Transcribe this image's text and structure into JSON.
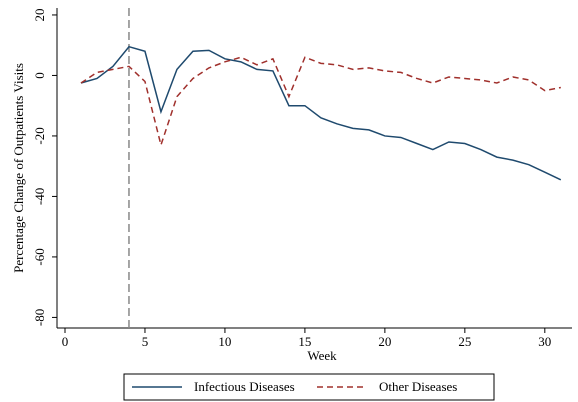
{
  "chart_data": {
    "type": "line",
    "x": [
      1,
      2,
      3,
      4,
      5,
      6,
      7,
      8,
      9,
      10,
      11,
      12,
      13,
      14,
      15,
      16,
      17,
      18,
      19,
      20,
      21,
      22,
      23,
      24,
      25,
      26,
      27,
      28,
      29,
      30,
      31
    ],
    "series": [
      {
        "name": "Infectious Diseases",
        "color": "#1f4a6e",
        "dash": "none",
        "values": [
          -2.5,
          -1,
          3,
          9.5,
          8,
          -12,
          2,
          8,
          8.3,
          5.5,
          4.5,
          2,
          1.5,
          -10,
          -10,
          -14,
          -16,
          -17.5,
          -18,
          -20,
          -20.5,
          -22.5,
          -24.5,
          -22,
          -22.5,
          -24.5,
          -27,
          -28,
          -29.5,
          -32,
          -34.5
        ]
      },
      {
        "name": "Other Diseases",
        "color": "#a0302c",
        "dash": "6 4",
        "values": [
          -2.5,
          1,
          2,
          3,
          -2,
          -23,
          -7,
          -1,
          2.5,
          4.5,
          6,
          3.5,
          5.5,
          -7,
          6,
          4,
          3.5,
          2,
          2.5,
          1.5,
          1,
          -1,
          -2.5,
          -0.5,
          -1,
          -1.5,
          -2.5,
          -0.5,
          -1.5,
          -5,
          -4
        ]
      }
    ],
    "xlabel": "Week",
    "ylabel": "Percentage Change of Outpatients Visits",
    "xlim": [
      -0.5,
      31.7
    ],
    "ylim": [
      -83.5,
      22.3
    ],
    "xticks": [
      0,
      5,
      10,
      15,
      20,
      25,
      30
    ],
    "yticks": [
      -80,
      -60,
      -40,
      -20,
      0,
      20
    ],
    "vline": 4,
    "grid": false,
    "legend": "bottom"
  }
}
